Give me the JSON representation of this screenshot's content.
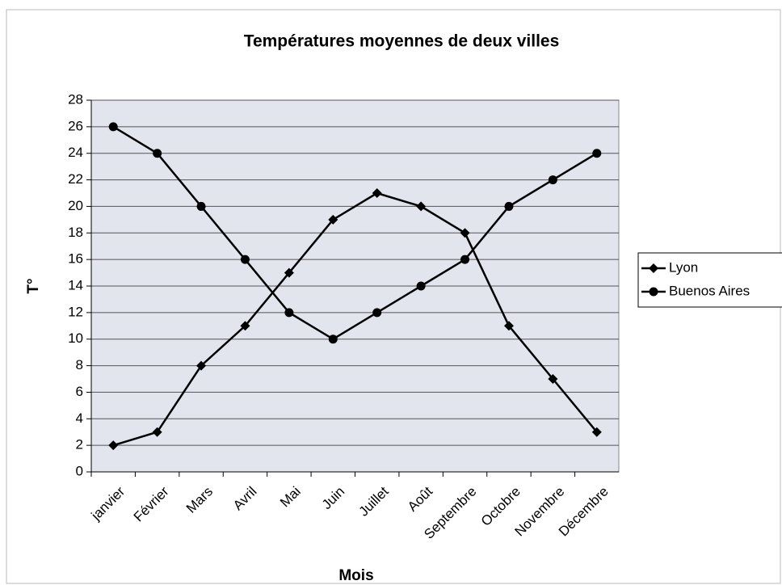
{
  "chart_data": {
    "type": "line",
    "title": "Températures moyennes de deux villes",
    "xlabel": "Mois",
    "ylabel": "T°",
    "categories": [
      "janvier",
      "Février",
      "Mars",
      "Avril",
      "Mai",
      "Juin",
      "Juillet",
      "Août",
      "Septembre",
      "Octobre",
      "Novembre",
      "Décembre"
    ],
    "series": [
      {
        "name": "Lyon",
        "color": "#000000",
        "marker": "diamond",
        "values": [
          2,
          3,
          8,
          11,
          15,
          19,
          21,
          20,
          18,
          11,
          7,
          3
        ]
      },
      {
        "name": "Buenos Aires",
        "color": "#000000",
        "marker": "circle",
        "values": [
          26,
          24,
          20,
          16,
          12,
          10,
          12,
          14,
          16,
          20,
          22,
          24
        ]
      }
    ],
    "ylim": [
      0,
      28
    ],
    "yticks": [
      0,
      2,
      4,
      6,
      8,
      10,
      12,
      14,
      16,
      18,
      20,
      22,
      24,
      26,
      28
    ],
    "grid": true,
    "legend": "right"
  }
}
